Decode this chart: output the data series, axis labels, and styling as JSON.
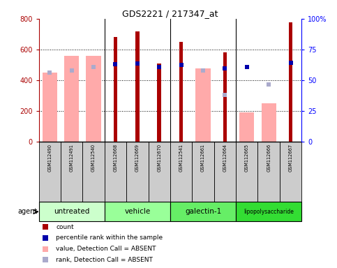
{
  "title": "GDS2221 / 217347_at",
  "samples": [
    "GSM112490",
    "GSM112491",
    "GSM112540",
    "GSM112668",
    "GSM112669",
    "GSM112670",
    "GSM112541",
    "GSM112661",
    "GSM112664",
    "GSM112665",
    "GSM112666",
    "GSM112667"
  ],
  "groups": [
    {
      "name": "untreated",
      "indices": [
        0,
        1,
        2
      ]
    },
    {
      "name": "vehicle",
      "indices": [
        3,
        4,
        5
      ]
    },
    {
      "name": "galectin-1",
      "indices": [
        6,
        7,
        8
      ]
    },
    {
      "name": "lipopolysaccharide",
      "indices": [
        9,
        10,
        11
      ]
    }
  ],
  "group_colors": [
    "#ccffcc",
    "#99ff99",
    "#66ee66",
    "#33dd33"
  ],
  "count_present": [
    null,
    null,
    null,
    683,
    718,
    508,
    648,
    null,
    580,
    null,
    null,
    778
  ],
  "count_absent": [
    450,
    560,
    558,
    null,
    null,
    null,
    null,
    475,
    null,
    190,
    248,
    null
  ],
  "rank_present": [
    null,
    null,
    null,
    505,
    510,
    485,
    500,
    null,
    475,
    485,
    null,
    515
  ],
  "rank_absent": [
    null,
    null,
    null,
    null,
    null,
    null,
    null,
    null,
    305,
    null,
    375,
    null
  ],
  "prank_absent": [
    450,
    465,
    485,
    null,
    null,
    null,
    null,
    465,
    null,
    null,
    null,
    null
  ],
  "ylim_left": [
    0,
    800
  ],
  "ylim_right": [
    0,
    100
  ],
  "yticks_left": [
    0,
    200,
    400,
    600,
    800
  ],
  "ytick_labels_left": [
    "0",
    "200",
    "400",
    "600",
    "800"
  ],
  "ytick_labels_right": [
    "0",
    "25",
    "50",
    "75",
    "100%"
  ],
  "color_count": "#aa0000",
  "color_rank_present": "#0000aa",
  "color_value_absent": "#ffaaaa",
  "color_rank_absent": "#aaaacc",
  "sample_bg": "#cccccc",
  "border_color": "#000000",
  "grid_color": "#000000"
}
